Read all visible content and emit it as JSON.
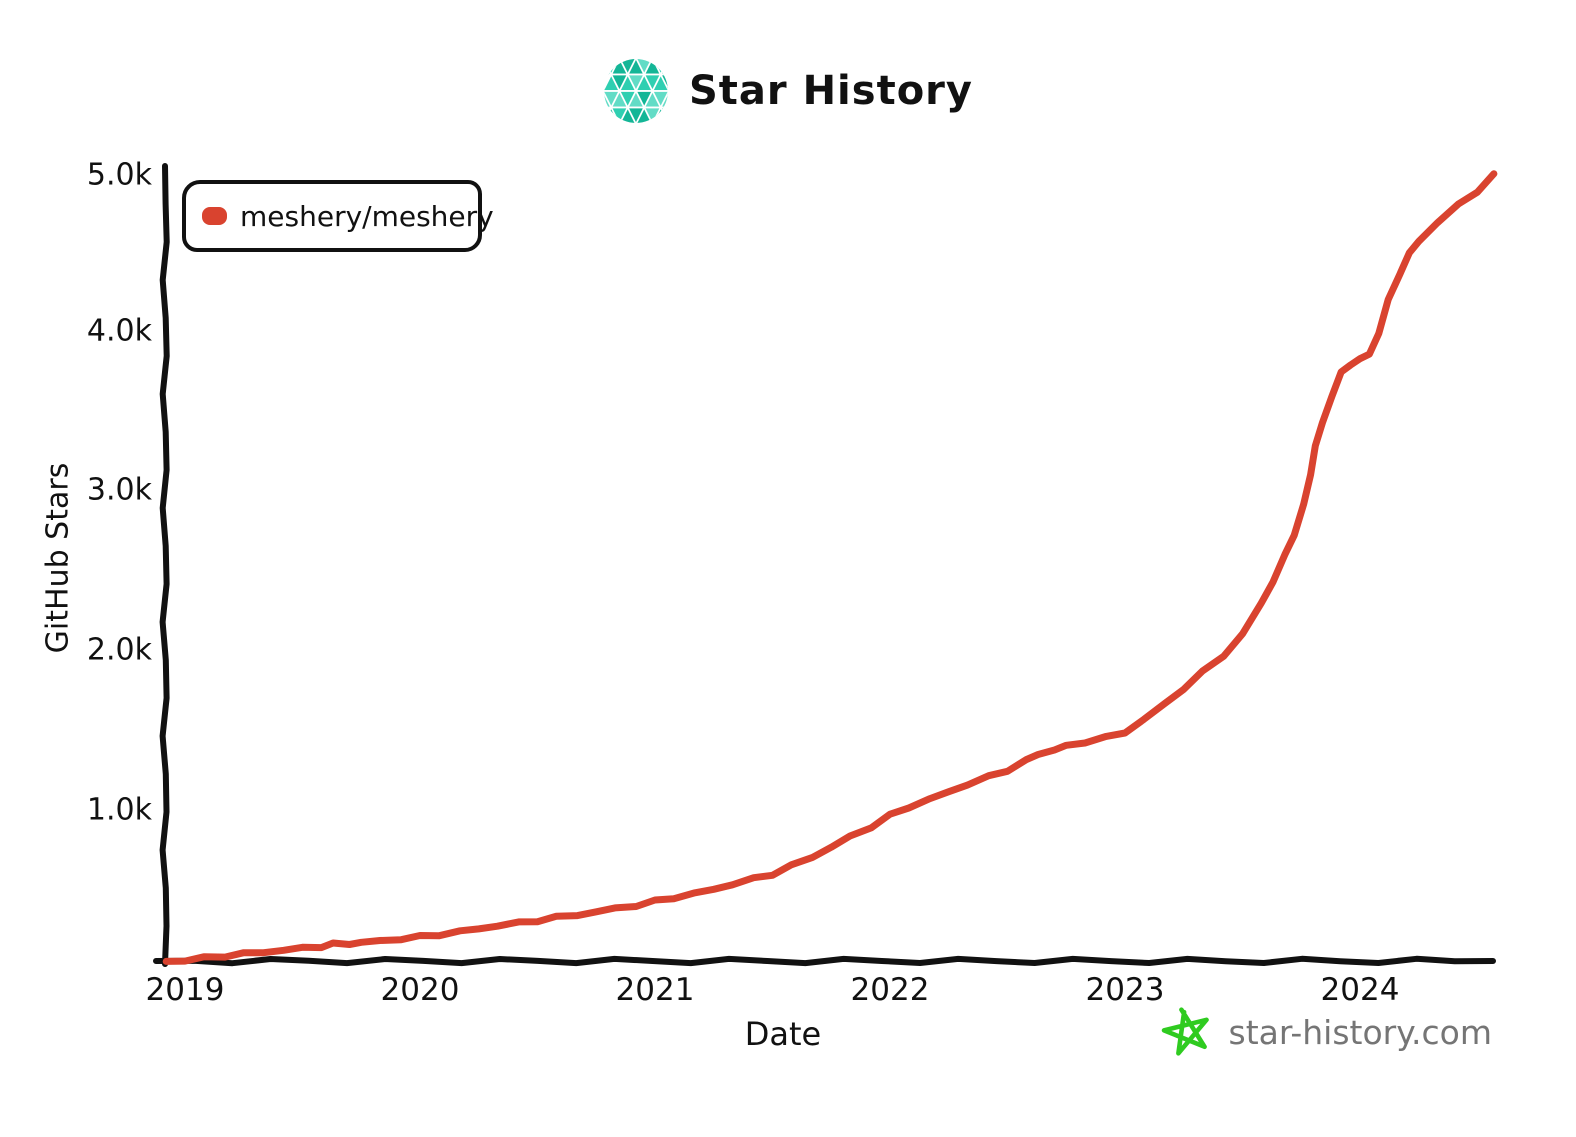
{
  "header": {
    "title": "Star History"
  },
  "legend": {
    "items": [
      {
        "label": "meshery/meshery",
        "color": "#d9432f"
      }
    ]
  },
  "footer": {
    "site": "star-history.com",
    "star_color": "#2fcb20",
    "text_color": "#757575"
  },
  "colors": {
    "accent_teal": "#1cbc9c",
    "line_red": "#d9432f",
    "axis_black": "#111111"
  },
  "chart_data": {
    "type": "line",
    "title": "Star History",
    "xlabel": "Date",
    "ylabel": "GitHub Stars",
    "x_ticks": [
      "2019",
      "2020",
      "2021",
      "2022",
      "2023",
      "2024"
    ],
    "y_ticks": [
      "1.0k",
      "2.0k",
      "3.0k",
      "4.0k",
      "5.0k"
    ],
    "xlim": [
      2019,
      2024.6
    ],
    "ylim": [
      0,
      5000
    ],
    "grid": false,
    "legend_position": "top-left",
    "series": [
      {
        "name": "meshery/meshery",
        "color": "#d9432f",
        "x": [
          2018.92,
          2019.0,
          2019.08,
          2019.17,
          2019.25,
          2019.33,
          2019.42,
          2019.5,
          2019.58,
          2019.63,
          2019.7,
          2019.75,
          2019.83,
          2019.92,
          2020.0,
          2020.08,
          2020.17,
          2020.25,
          2020.33,
          2020.42,
          2020.5,
          2020.58,
          2020.67,
          2020.75,
          2020.83,
          2020.92,
          2021.0,
          2021.08,
          2021.17,
          2021.25,
          2021.33,
          2021.42,
          2021.5,
          2021.58,
          2021.67,
          2021.75,
          2021.83,
          2021.92,
          2022.0,
          2022.08,
          2022.17,
          2022.25,
          2022.33,
          2022.42,
          2022.5,
          2022.58,
          2022.63,
          2022.7,
          2022.75,
          2022.83,
          2022.92,
          2023.0,
          2023.08,
          2023.17,
          2023.25,
          2023.33,
          2023.42,
          2023.5,
          2023.58,
          2023.63,
          2023.68,
          2023.72,
          2023.76,
          2023.79,
          2023.81,
          2023.84,
          2023.88,
          2023.92,
          2023.96,
          2024.0,
          2024.04,
          2024.08,
          2024.12,
          2024.17,
          2024.21,
          2024.25,
          2024.33,
          2024.42,
          2024.5,
          2024.57
        ],
        "y": [
          4,
          10,
          25,
          40,
          52,
          62,
          75,
          88,
          100,
          112,
          118,
          122,
          135,
          148,
          160,
          175,
          192,
          212,
          230,
          248,
          265,
          282,
          300,
          318,
          340,
          360,
          385,
          410,
          435,
          462,
          495,
          528,
          560,
          610,
          668,
          730,
          795,
          860,
          930,
          985,
          1035,
          1080,
          1130,
          1175,
          1220,
          1280,
          1320,
          1350,
          1370,
          1400,
          1425,
          1460,
          1540,
          1640,
          1740,
          1840,
          1950,
          2080,
          2280,
          2420,
          2580,
          2720,
          2900,
          3100,
          3280,
          3420,
          3600,
          3740,
          3800,
          3830,
          3860,
          4000,
          4200,
          4380,
          4500,
          4580,
          4700,
          4810,
          4900,
          5000
        ]
      }
    ]
  }
}
